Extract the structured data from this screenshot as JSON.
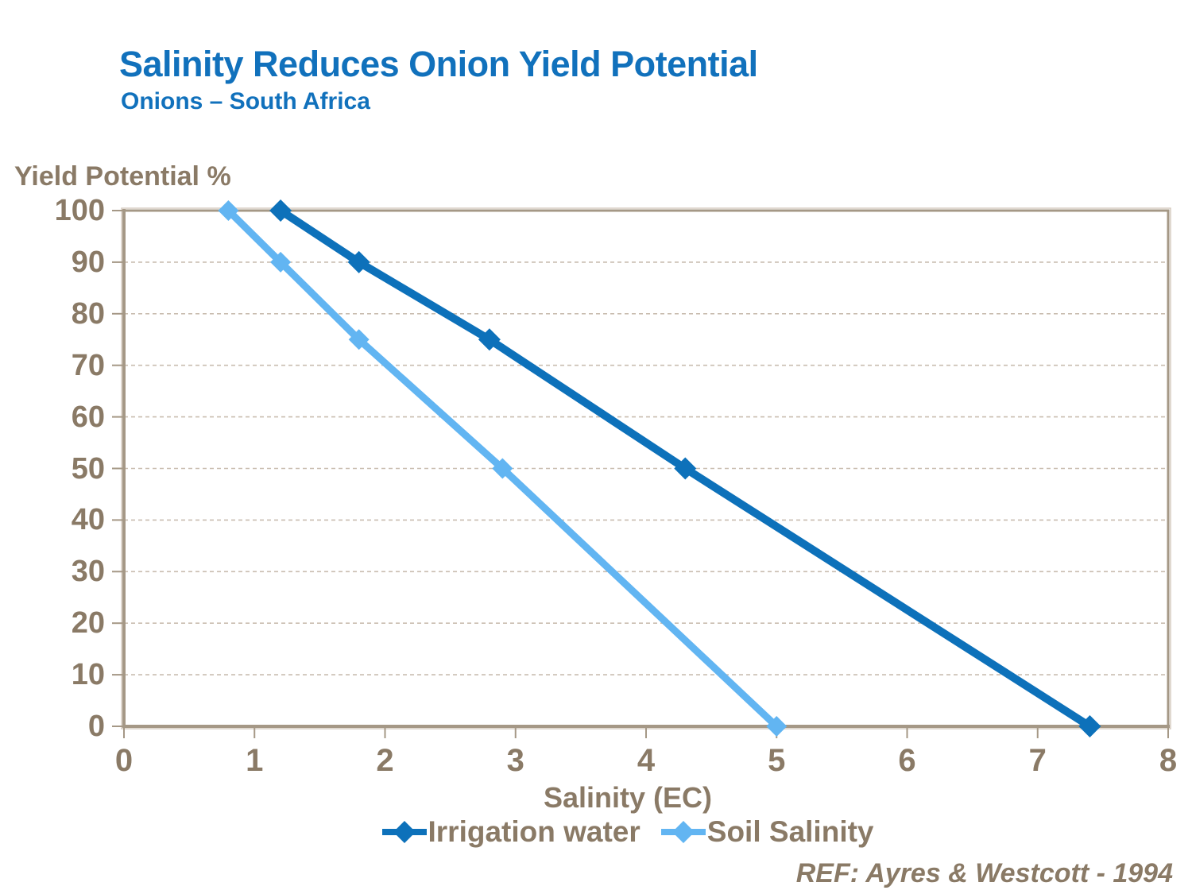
{
  "chart_data": {
    "type": "line",
    "title": "Salinity Reduces Onion Yield Potential",
    "subtitle": "Onions – South Africa",
    "xlabel": "Salinity (EC)",
    "ylabel": "Yield Potential %",
    "xlim": [
      0,
      8
    ],
    "ylim": [
      0,
      100
    ],
    "xticks": [
      0,
      1,
      2,
      3,
      4,
      5,
      6,
      7,
      8
    ],
    "yticks": [
      0,
      10,
      20,
      30,
      40,
      50,
      60,
      70,
      80,
      90,
      100
    ],
    "grid": "horizontal-dashed",
    "legend_position": "bottom",
    "series": [
      {
        "name": "Irrigation water",
        "color": "#0d71ba",
        "marker": "diamond",
        "points": [
          [
            1.2,
            100
          ],
          [
            1.8,
            90
          ],
          [
            2.8,
            75
          ],
          [
            4.3,
            50
          ],
          [
            7.4,
            0
          ]
        ]
      },
      {
        "name": "Soil Salinity",
        "color": "#62b5f2",
        "marker": "diamond",
        "points": [
          [
            0.8,
            100
          ],
          [
            1.2,
            90
          ],
          [
            1.8,
            75
          ],
          [
            2.9,
            50
          ],
          [
            5.0,
            0
          ]
        ]
      }
    ]
  },
  "footer": {
    "ref_label": "REF: Ayres & Westcott - 1994"
  },
  "colors": {
    "title": "#1171bc",
    "axis_text": "#8a7a66",
    "axis_line": "#a59886",
    "axis_line_light": "#d5ccc0",
    "gridline": "#c9bdb0",
    "background": "#ffffff"
  }
}
